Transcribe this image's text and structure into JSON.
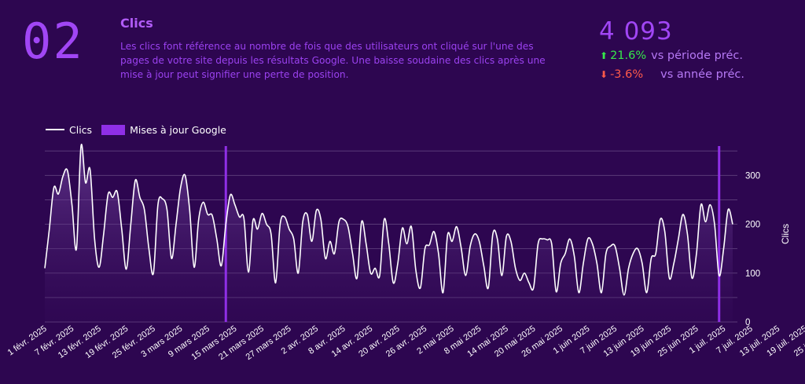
{
  "header": {
    "section_number": "02",
    "title": "Clics",
    "description": "Les clics font référence au nombre de fois que des utilisateurs ont cliqué sur l'une des pages de votre site depuis les résultats Google. Une baisse soudaine des clics après une mise à jour peut signifier une perte de position."
  },
  "kpi": {
    "value": "4 093",
    "prev_period_change": "21.6%",
    "prev_period_label": "vs période préc.",
    "prev_year_change": "-3.6%",
    "prev_year_label": "vs année préc.",
    "up_color": "#36e84a",
    "down_color": "#ff5a4a"
  },
  "legend": {
    "clicks_label": "Clics",
    "updates_label": "Mises à jour Google"
  },
  "colors": {
    "background": "#2d0650",
    "accent": "#a146f5",
    "update_line": "#8f2fe6",
    "series_line": "#ffffff",
    "grid": "#5a3a78"
  },
  "chart_data": {
    "type": "area",
    "title": "",
    "xlabel": "",
    "ylabel": "Clics",
    "ylim": [
      0,
      360
    ],
    "yticks": [
      0,
      100,
      200,
      300
    ],
    "grid": true,
    "legend_position": "top-left",
    "x_start": "2025-02-01",
    "x_tick_labels": [
      "1 févr. 2025",
      "7 févr. 2025",
      "13 févr. 2025",
      "19 févr. 2025",
      "25 févr. 2025",
      "3 mars 2025",
      "9 mars 2025",
      "15 mars 2025",
      "21 mars 2025",
      "27 mars 2025",
      "2 avr. 2025",
      "8 avr. 2025",
      "14 avr. 2025",
      "20 avr. 2025",
      "26 avr. 2025",
      "2 mai 2025",
      "8 mai 2025",
      "14 mai 2025",
      "20 mai 2025",
      "26 mai 2025",
      "1 juin 2025",
      "7 juin 2025",
      "13 juin 2025",
      "19 juin 2025",
      "25 juin 2025",
      "1 juil. 2025",
      "7 juil. 2025",
      "13 juil. 2025",
      "19 juil. 2025",
      "25 juil. 2025"
    ],
    "google_updates": [
      "2025-03-13",
      "2025-06-30"
    ],
    "series": [
      {
        "name": "Clics",
        "values": [
          110,
          190,
          275,
          262,
          298,
          310,
          240,
          150,
          360,
          285,
          312,
          170,
          112,
          180,
          262,
          255,
          266,
          190,
          108,
          200,
          290,
          255,
          230,
          150,
          100,
          240,
          252,
          230,
          130,
          200,
          275,
          300,
          230,
          112,
          210,
          245,
          220,
          218,
          170,
          115,
          200,
          260,
          240,
          215,
          212,
          102,
          208,
          190,
          222,
          200,
          180,
          80,
          200,
          215,
          190,
          170,
          100,
          205,
          220,
          165,
          228,
          210,
          130,
          165,
          140,
          205,
          210,
          195,
          140,
          90,
          205,
          160,
          100,
          110,
          95,
          210,
          160,
          80,
          120,
          192,
          160,
          195,
          105,
          70,
          150,
          158,
          185,
          140,
          60,
          178,
          165,
          195,
          152,
          95,
          155,
          180,
          165,
          115,
          70,
          180,
          170,
          95,
          175,
          165,
          110,
          85,
          100,
          80,
          70,
          160,
          170,
          168,
          160,
          62,
          120,
          140,
          170,
          135,
          60,
          120,
          170,
          160,
          120,
          60,
          140,
          155,
          155,
          110,
          55,
          110,
          140,
          150,
          120,
          60,
          130,
          140,
          210,
          185,
          90,
          120,
          170,
          220,
          180,
          90,
          140,
          240,
          205,
          240,
          200,
          95,
          150,
          230,
          200
        ]
      }
    ]
  }
}
